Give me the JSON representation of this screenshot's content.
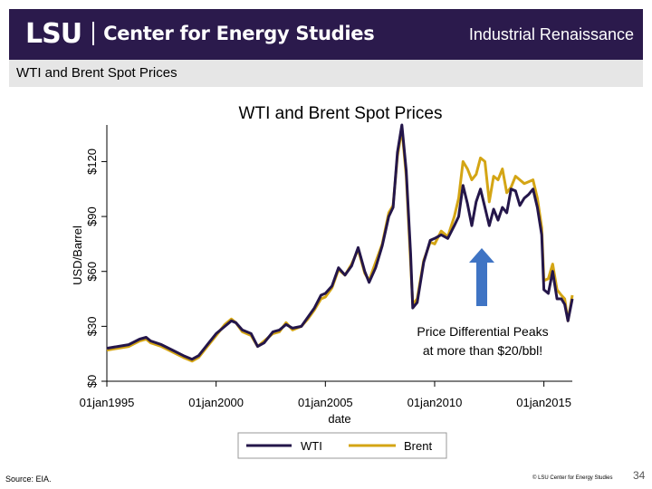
{
  "header": {
    "logo_mark": "LSU",
    "logo_text": "Center for Energy Studies",
    "title": "Industrial Renaissance"
  },
  "subbar": {
    "title": "WTI and Brent Spot Prices"
  },
  "annotation": {
    "line1": "Price Differential Peaks",
    "line2": "at more than $20/bbl!"
  },
  "footer": {
    "source": "Source:  EIA.",
    "copyright": "© LSU Center for Energy Studies",
    "page": "34"
  },
  "colors": {
    "wti": "#24164a",
    "brent": "#d4a514",
    "arrow": "#3f74c4",
    "header_bg": "#2b1a4c"
  },
  "chart_data": {
    "type": "line",
    "title": "WTI and Brent Spot Prices",
    "xlabel": "date",
    "ylabel": "USD/Barrel",
    "x_ticks": [
      "01jan1995",
      "01jan2000",
      "01jan2005",
      "01jan2010",
      "01jan2015"
    ],
    "y_ticks": [
      "$0",
      "$30",
      "$60",
      "$90",
      "$120"
    ],
    "ylim": [
      0,
      140
    ],
    "xlim": [
      1995.0,
      2016.3
    ],
    "grid": false,
    "legend": "bottom",
    "x": [
      1995.0,
      1995.5,
      1996.0,
      1996.5,
      1996.8,
      1997.0,
      1997.5,
      1998.0,
      1998.5,
      1998.9,
      1999.2,
      1999.6,
      2000.0,
      2000.4,
      2000.7,
      2000.9,
      2001.2,
      2001.6,
      2001.9,
      2002.2,
      2002.6,
      2002.9,
      2003.2,
      2003.5,
      2003.9,
      2004.2,
      2004.5,
      2004.8,
      2005.0,
      2005.3,
      2005.6,
      2005.9,
      2006.2,
      2006.5,
      2006.8,
      2007.0,
      2007.3,
      2007.6,
      2007.9,
      2008.1,
      2008.3,
      2008.5,
      2008.7,
      2008.9,
      2009.0,
      2009.2,
      2009.5,
      2009.8,
      2010.0,
      2010.3,
      2010.6,
      2010.9,
      2011.1,
      2011.3,
      2011.5,
      2011.7,
      2011.9,
      2012.1,
      2012.3,
      2012.5,
      2012.7,
      2012.9,
      2013.1,
      2013.3,
      2013.5,
      2013.7,
      2013.9,
      2014.1,
      2014.3,
      2014.5,
      2014.7,
      2014.9,
      2015.0,
      2015.2,
      2015.4,
      2015.6,
      2015.8,
      2015.95,
      2016.1,
      2016.3
    ],
    "series": [
      {
        "name": "WTI",
        "values": [
          18,
          19,
          20,
          23,
          24,
          22,
          20,
          17,
          14,
          12,
          14,
          20,
          26,
          30,
          33,
          32,
          28,
          26,
          19,
          21,
          27,
          28,
          31,
          29,
          30,
          35,
          40,
          47,
          48,
          52,
          62,
          58,
          63,
          73,
          60,
          54,
          62,
          74,
          90,
          95,
          125,
          140,
          115,
          70,
          40,
          43,
          65,
          77,
          78,
          80,
          78,
          85,
          90,
          107,
          97,
          85,
          98,
          105,
          95,
          85,
          94,
          88,
          95,
          92,
          105,
          104,
          96,
          100,
          102,
          105,
          95,
          80,
          50,
          48,
          60,
          45,
          45,
          42,
          33,
          45
        ]
      },
      {
        "name": "Brent",
        "values": [
          17,
          18,
          19,
          22,
          23,
          21,
          19,
          16,
          13,
          11,
          13,
          19,
          25,
          31,
          34,
          32,
          27,
          25,
          19,
          22,
          26,
          27,
          32,
          28,
          30,
          34,
          39,
          45,
          46,
          51,
          61,
          58,
          64,
          72,
          59,
          55,
          65,
          75,
          92,
          96,
          123,
          138,
          112,
          65,
          42,
          45,
          66,
          76,
          75,
          82,
          79,
          90,
          100,
          120,
          116,
          110,
          113,
          122,
          120,
          98,
          112,
          110,
          116,
          103,
          106,
          112,
          110,
          108,
          109,
          110,
          100,
          84,
          55,
          56,
          64,
          50,
          47,
          45,
          33,
          47
        ]
      }
    ]
  }
}
